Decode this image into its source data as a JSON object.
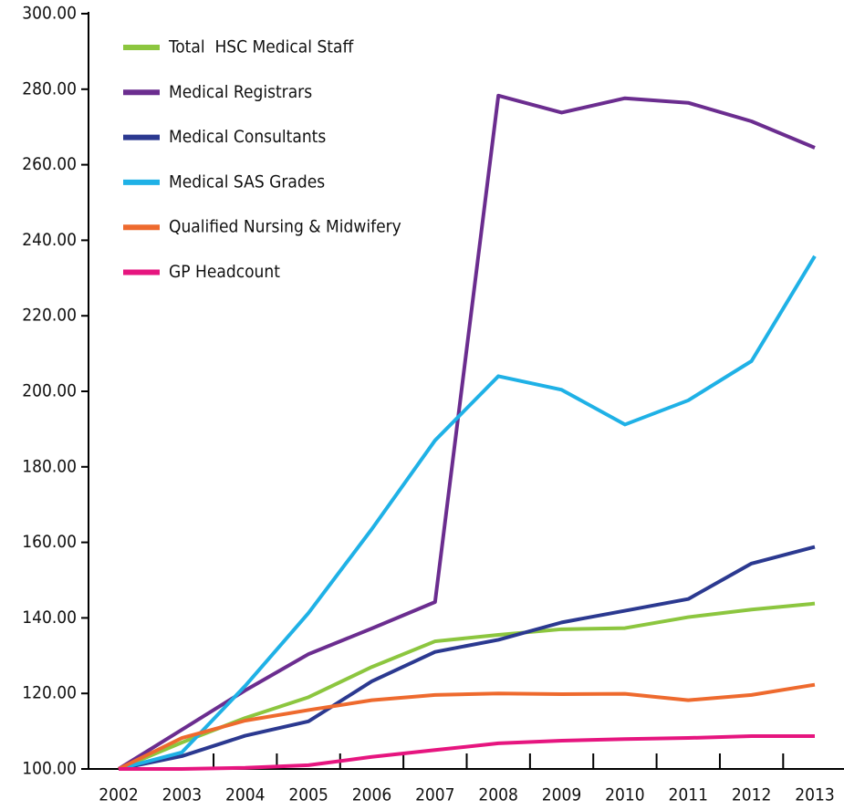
{
  "chart_data": {
    "type": "line",
    "categories": [
      "2002",
      "2003",
      "2004",
      "2005",
      "2006",
      "2007",
      "2008",
      "2009",
      "2010",
      "2011",
      "2012",
      "2013"
    ],
    "series": [
      {
        "name": "Total  HSC Medical Staff",
        "color": "#8cc63f",
        "values": [
          100,
          107,
          113.5,
          119,
          127,
          133.8,
          135.5,
          137,
          137.3,
          140.2,
          142.2,
          143.8
        ]
      },
      {
        "name": "Medical Registrars",
        "color": "#6b2d8f",
        "values": [
          100,
          110.4,
          120.8,
          130.4,
          137.2,
          144.2,
          278.3,
          273.8,
          277.6,
          276.4,
          271.5,
          264.5
        ]
      },
      {
        "name": "Medical Consultants",
        "color": "#2b3990",
        "values": [
          100,
          103.4,
          108.8,
          112.6,
          123.2,
          131,
          134.2,
          138.8,
          141.9,
          145,
          154.4,
          158.8
        ]
      },
      {
        "name": "Medical SAS Grades",
        "color": "#1fb1e6",
        "values": [
          100,
          104.4,
          122,
          141.3,
          163.5,
          187,
          204,
          200.4,
          191.2,
          197.6,
          208,
          235.8
        ]
      },
      {
        "name": "Qualified Nursing & Midwifery",
        "color": "#ee6a2e",
        "values": [
          100,
          108.2,
          112.8,
          115.6,
          118.2,
          119.6,
          120,
          119.8,
          119.9,
          118.2,
          119.6,
          122.3
        ]
      },
      {
        "name": "GP Headcount",
        "color": "#e6157f",
        "values": [
          100,
          100,
          100.3,
          101,
          103.2,
          105,
          106.8,
          107.5,
          107.9,
          108.2,
          108.7,
          108.7
        ]
      }
    ],
    "ylim": [
      100,
      300
    ],
    "yticks": [
      {
        "value": 100,
        "label": "100.00"
      },
      {
        "value": 120,
        "label": "120.00"
      },
      {
        "value": 140,
        "label": "140.00"
      },
      {
        "value": 160,
        "label": "160.00"
      },
      {
        "value": 180,
        "label": "180.00"
      },
      {
        "value": 200,
        "label": "200.00"
      },
      {
        "value": 220,
        "label": "220.00"
      },
      {
        "value": 240,
        "label": "240.00"
      },
      {
        "value": 260,
        "label": "260.00"
      },
      {
        "value": 280,
        "label": "280.00"
      },
      {
        "value": 300,
        "label": "300.00"
      }
    ],
    "grid": false,
    "legend": "top-left"
  }
}
